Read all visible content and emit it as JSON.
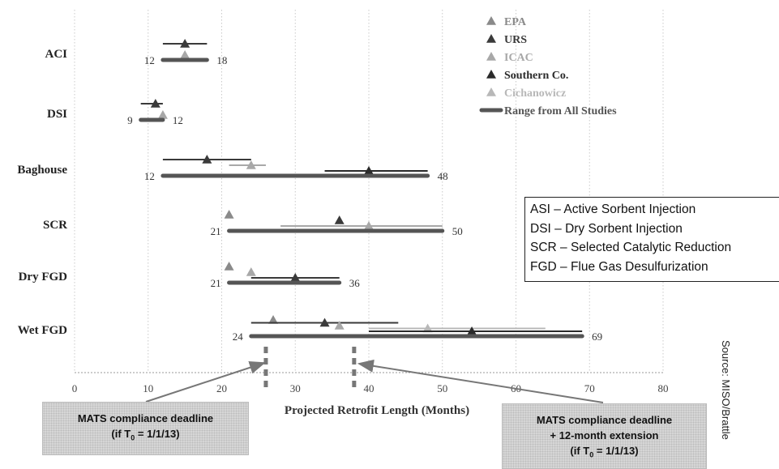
{
  "chart_data": {
    "type": "range",
    "xlabel": "Projected Retrofit Length (Months)",
    "xlim": [
      0,
      80
    ],
    "xticks": [
      "0",
      "10",
      "20",
      "30",
      "40",
      "50",
      "60",
      "70",
      "80"
    ],
    "grid": "vertical dotted",
    "legend_position": "top-right",
    "legend": [
      {
        "label": "EPA",
        "color": "#8a8a8a",
        "marker": "triangle"
      },
      {
        "label": "URS",
        "color": "#3a3a3a",
        "marker": "triangle"
      },
      {
        "label": "ICAC",
        "color": "#a8a8a8",
        "marker": "triangle"
      },
      {
        "label": "Southern Co.",
        "color": "#2a2a2a",
        "marker": "triangle"
      },
      {
        "label": "Cichanowicz",
        "color": "#b8b8b8",
        "marker": "triangle"
      },
      {
        "label": "Range from All Studies",
        "color": "#555555",
        "marker": "thick-line"
      }
    ],
    "categories": [
      {
        "name": "ACI",
        "range": {
          "start": 12,
          "end": 18,
          "start_label": "12",
          "end_label": "18"
        },
        "studies": [
          {
            "source": "URS",
            "start": 12,
            "end": 18,
            "mid": 15
          },
          {
            "source": "ICAC",
            "start": 15,
            "end": 15,
            "mid": 15
          }
        ]
      },
      {
        "name": "DSI",
        "range": {
          "start": 9,
          "end": 12,
          "start_label": "9",
          "end_label": "12"
        },
        "studies": [
          {
            "source": "URS",
            "start": 9,
            "end": 12,
            "mid": 11
          },
          {
            "source": "ICAC",
            "start": 12,
            "end": 12,
            "mid": 12
          }
        ]
      },
      {
        "name": "Baghouse",
        "range": {
          "start": 12,
          "end": 48,
          "start_label": "12",
          "end_label": "48"
        },
        "studies": [
          {
            "source": "URS",
            "start": 12,
            "end": 24,
            "mid": 18
          },
          {
            "source": "ICAC",
            "start": 21,
            "end": 26,
            "mid": 24
          },
          {
            "source": "Southern Co.",
            "start": 34,
            "end": 48,
            "mid": 40
          }
        ]
      },
      {
        "name": "SCR",
        "range": {
          "start": 21,
          "end": 50,
          "start_label": "21",
          "end_label": "50"
        },
        "studies": [
          {
            "source": "EPA",
            "start": 21,
            "end": 21,
            "mid": 21
          },
          {
            "source": "URS",
            "start": 36,
            "end": 36,
            "mid": 36
          },
          {
            "source": "ICAC",
            "start": 28,
            "end": 50,
            "mid": 40
          }
        ]
      },
      {
        "name": "Dry FGD",
        "range": {
          "start": 21,
          "end": 36,
          "start_label": "21",
          "end_label": "36"
        },
        "studies": [
          {
            "source": "EPA",
            "start": 21,
            "end": 21,
            "mid": 21
          },
          {
            "source": "ICAC",
            "start": 24,
            "end": 24,
            "mid": 24
          },
          {
            "source": "URS",
            "start": 24,
            "end": 36,
            "mid": 30
          }
        ]
      },
      {
        "name": "Wet FGD",
        "range": {
          "start": 24,
          "end": 69,
          "start_label": "24",
          "end_label": "69"
        },
        "studies": [
          {
            "source": "EPA",
            "start": 27,
            "end": 27,
            "mid": 27
          },
          {
            "source": "URS",
            "start": 24,
            "end": 44,
            "mid": 34
          },
          {
            "source": "ICAC",
            "start": 36,
            "end": 36,
            "mid": 36
          },
          {
            "source": "Cichanowicz",
            "start": 40,
            "end": 64,
            "mid": 48
          },
          {
            "source": "Southern Co.",
            "start": 40,
            "end": 69,
            "mid": 54
          }
        ]
      }
    ],
    "deadlines": [
      {
        "month": 26,
        "label_line1": "MATS compliance deadline",
        "label_line2_prefix": "(if T",
        "label_line2_sub": "0",
        "label_line2_suffix": " = 1/1/13)"
      },
      {
        "month": 38,
        "label_line1": "MATS compliance deadline",
        "label_line1b": "+ 12-month extension",
        "label_line2_prefix": "(if T",
        "label_line2_sub": "0",
        "label_line2_suffix": " = 1/1/13)"
      }
    ]
  },
  "abbreviations": [
    "ASI – Active Sorbent Injection",
    "DSI – Dry Sorbent Injection",
    "SCR – Selected Catalytic Reduction",
    "FGD – Flue Gas Desulfurization"
  ],
  "source_note": "Source: MISO/Brattle"
}
